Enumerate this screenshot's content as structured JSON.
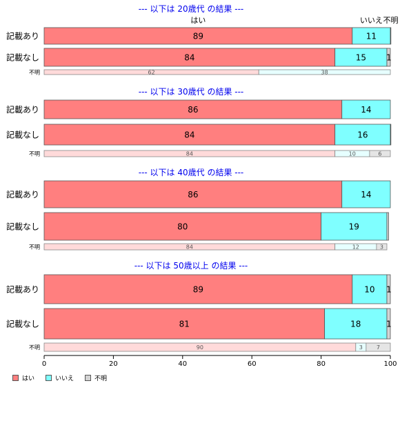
{
  "chart_data": {
    "type": "bar",
    "orientation": "horizontal",
    "stacked": true,
    "colors": {
      "yes": "#FF7F7F",
      "no": "#7FFFFF",
      "unknown": "#D3D3D3",
      "yes_light": "#FFDADA",
      "no_light": "#E6FFFF",
      "unknown_light": "#E5E5E5",
      "title": "#0000EE"
    },
    "legend": {
      "placement": "bottom-left",
      "entries": [
        "はい",
        "いいえ",
        "不明"
      ]
    },
    "top_headers": {
      "yes": "はい",
      "no": "いいえ",
      "unknown": "不明"
    },
    "xlim": [
      0,
      100
    ],
    "xticks": [
      "0",
      "20",
      "40",
      "60",
      "80",
      "100"
    ],
    "groups": [
      {
        "title": "--- 以下は 20歳代 の結果 ---",
        "rows": [
          {
            "label": "記載あり",
            "values": [
              89,
              11,
              0.3
            ],
            "text": [
              "89",
              "11",
              ""
            ]
          },
          {
            "label": "記載なし",
            "values": [
              84,
              15,
              1
            ],
            "text": [
              "84",
              "15",
              "1"
            ]
          },
          {
            "label": "不明",
            "values": [
              62,
              38,
              0
            ],
            "text": [
              "62",
              "38",
              ""
            ],
            "small": true
          }
        ]
      },
      {
        "title": "--- 以下は 30歳代 の結果 ---",
        "rows": [
          {
            "label": "記載あり",
            "values": [
              86,
              14,
              0
            ],
            "text": [
              "86",
              "14",
              ""
            ]
          },
          {
            "label": "記載なし",
            "values": [
              84,
              16,
              0.3
            ],
            "text": [
              "84",
              "16",
              ""
            ]
          },
          {
            "label": "不明",
            "values": [
              84,
              10,
              6
            ],
            "text": [
              "84",
              "10",
              "6"
            ],
            "small": true
          }
        ]
      },
      {
        "title": "--- 以下は 40歳代 の結果 ---",
        "rows": [
          {
            "label": "記載あり",
            "values": [
              86,
              14,
              0
            ],
            "text": [
              "86",
              "14",
              ""
            ]
          },
          {
            "label": "記載なし",
            "values": [
              80,
              19,
              0.5
            ],
            "text": [
              "80",
              "19",
              ""
            ]
          },
          {
            "label": "不明",
            "values": [
              84,
              12,
              3
            ],
            "text": [
              "84",
              "12",
              "3"
            ],
            "small": true
          }
        ]
      },
      {
        "title": "--- 以下は 50歳以上 の結果 ---",
        "rows": [
          {
            "label": "記載あり",
            "values": [
              89,
              10,
              1
            ],
            "text": [
              "89",
              "10",
              "1"
            ]
          },
          {
            "label": "記載なし",
            "values": [
              81,
              18,
              1
            ],
            "text": [
              "81",
              "18",
              "1"
            ]
          },
          {
            "label": "不明",
            "values": [
              90,
              3,
              7
            ],
            "text": [
              "90",
              "3",
              "7"
            ],
            "small": true
          }
        ]
      }
    ]
  }
}
